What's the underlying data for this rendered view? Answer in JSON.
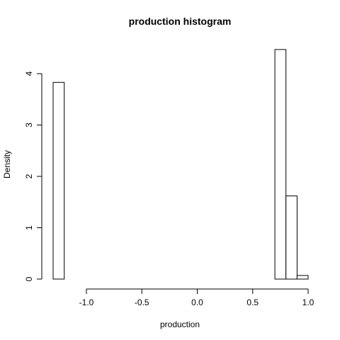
{
  "chart_data": {
    "type": "bar",
    "title": "production  histogram",
    "xlabel": "production",
    "ylabel": "Density",
    "xlim": [
      -1.35,
      1.0
    ],
    "ylim": [
      0,
      4.5
    ],
    "x_ticks": [
      -1.0,
      -0.5,
      0.0,
      0.5,
      1.0
    ],
    "x_tick_labels": [
      "-1.0",
      "-0.5",
      "0.0",
      "0.5",
      "1.0"
    ],
    "y_ticks": [
      0,
      1,
      2,
      3,
      4
    ],
    "y_tick_labels": [
      "0",
      "1",
      "2",
      "3",
      "4"
    ],
    "bin_width": 0.1,
    "bins": [
      {
        "start": -1.3,
        "end": -1.2,
        "density": 3.83
      },
      {
        "start": -1.2,
        "end": -1.1,
        "density": 0
      },
      {
        "start": -1.1,
        "end": -1.0,
        "density": 0
      },
      {
        "start": -1.0,
        "end": -0.9,
        "density": 0
      },
      {
        "start": -0.9,
        "end": -0.8,
        "density": 0
      },
      {
        "start": -0.8,
        "end": -0.7,
        "density": 0
      },
      {
        "start": -0.7,
        "end": -0.6,
        "density": 0
      },
      {
        "start": -0.6,
        "end": -0.5,
        "density": 0
      },
      {
        "start": -0.5,
        "end": -0.4,
        "density": 0
      },
      {
        "start": -0.4,
        "end": -0.3,
        "density": 0
      },
      {
        "start": -0.3,
        "end": -0.2,
        "density": 0
      },
      {
        "start": -0.2,
        "end": -0.1,
        "density": 0
      },
      {
        "start": -0.1,
        "end": 0.0,
        "density": 0
      },
      {
        "start": 0.0,
        "end": 0.1,
        "density": 0
      },
      {
        "start": 0.1,
        "end": 0.2,
        "density": 0
      },
      {
        "start": 0.2,
        "end": 0.3,
        "density": 0
      },
      {
        "start": 0.3,
        "end": 0.4,
        "density": 0
      },
      {
        "start": 0.4,
        "end": 0.5,
        "density": 0
      },
      {
        "start": 0.5,
        "end": 0.6,
        "density": 0
      },
      {
        "start": 0.6,
        "end": 0.7,
        "density": 0
      },
      {
        "start": 0.7,
        "end": 0.8,
        "density": 4.47
      },
      {
        "start": 0.8,
        "end": 0.9,
        "density": 1.62
      },
      {
        "start": 0.9,
        "end": 1.0,
        "density": 0.07
      }
    ]
  }
}
